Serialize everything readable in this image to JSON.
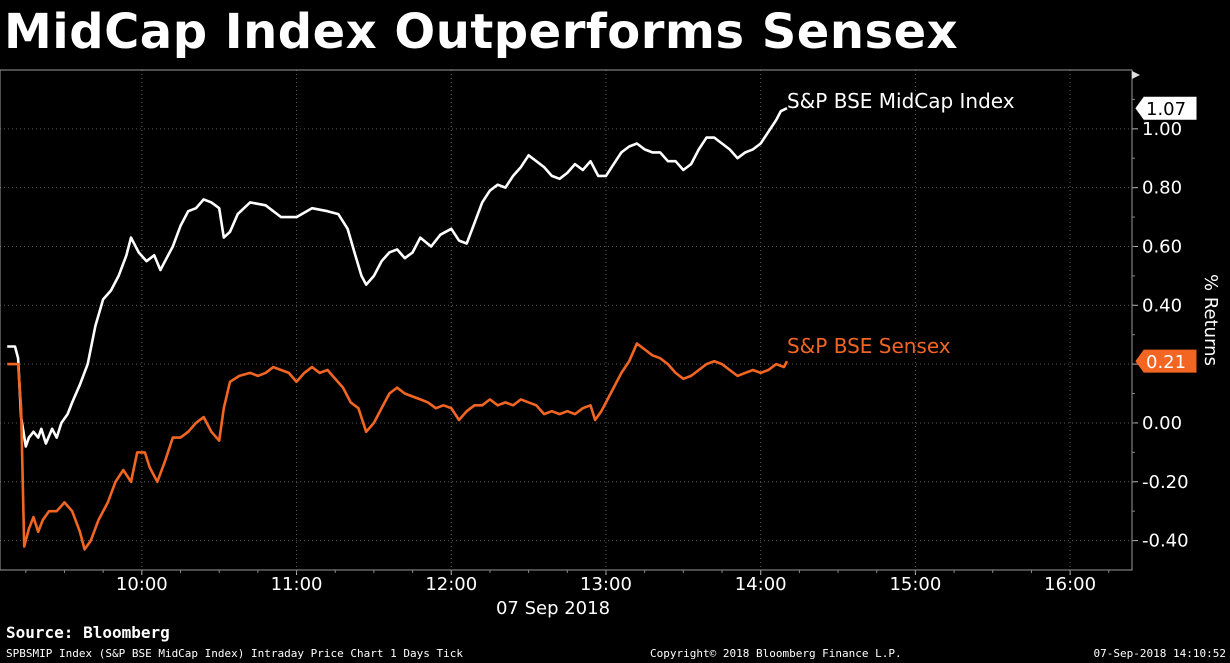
{
  "title": "MidCap Index Outperforms Sensex",
  "source": "Source: Bloomberg",
  "footer": {
    "left": "SPBSMIP Index (S&P BSE MidCap Index) Intraday Price Chart 1 Days  Tick",
    "mid": "Copyright© 2018 Bloomberg Finance L.P.",
    "right": "07-Sep-2018 14:10:52"
  },
  "chart_data": {
    "type": "line",
    "xlabel": "07 Sep 2018",
    "ylabel": "% Returns",
    "xlim": [
      9.0833,
      16.4
    ],
    "ylim": [
      -0.5,
      1.2
    ],
    "x_ticks": [
      10,
      11,
      12,
      13,
      14,
      15,
      16
    ],
    "x_tick_labels": [
      "10:00",
      "11:00",
      "12:00",
      "13:00",
      "14:00",
      "15:00",
      "16:00"
    ],
    "y_ticks": [
      -0.4,
      -0.2,
      0.0,
      0.2,
      0.4,
      0.6,
      0.8,
      1.0
    ],
    "y_tick_labels": [
      "-0.40",
      "-0.20",
      "0.00",
      "0.20",
      "0.40",
      "0.60",
      "0.80",
      "1.00"
    ],
    "grid": true,
    "series": [
      {
        "name": "S&P BSE MidCap Index",
        "color": "#ffffff",
        "last_value": "1.07",
        "points": [
          [
            9.13,
            0.26
          ],
          [
            9.18,
            0.26
          ],
          [
            9.2,
            0.22
          ],
          [
            9.22,
            0.02
          ],
          [
            9.25,
            -0.08
          ],
          [
            9.27,
            -0.05
          ],
          [
            9.3,
            -0.03
          ],
          [
            9.33,
            -0.05
          ],
          [
            9.35,
            -0.02
          ],
          [
            9.38,
            -0.07
          ],
          [
            9.42,
            -0.02
          ],
          [
            9.45,
            -0.05
          ],
          [
            9.48,
            0.0
          ],
          [
            9.52,
            0.03
          ],
          [
            9.55,
            0.07
          ],
          [
            9.6,
            0.13
          ],
          [
            9.65,
            0.2
          ],
          [
            9.7,
            0.33
          ],
          [
            9.75,
            0.42
          ],
          [
            9.8,
            0.45
          ],
          [
            9.85,
            0.5
          ],
          [
            9.9,
            0.57
          ],
          [
            9.93,
            0.63
          ],
          [
            9.98,
            0.58
          ],
          [
            10.03,
            0.55
          ],
          [
            10.08,
            0.57
          ],
          [
            10.12,
            0.52
          ],
          [
            10.15,
            0.55
          ],
          [
            10.2,
            0.6
          ],
          [
            10.25,
            0.67
          ],
          [
            10.3,
            0.72
          ],
          [
            10.35,
            0.73
          ],
          [
            10.4,
            0.76
          ],
          [
            10.45,
            0.75
          ],
          [
            10.5,
            0.73
          ],
          [
            10.53,
            0.63
          ],
          [
            10.57,
            0.65
          ],
          [
            10.62,
            0.71
          ],
          [
            10.7,
            0.75
          ],
          [
            10.8,
            0.74
          ],
          [
            10.9,
            0.7
          ],
          [
            11.0,
            0.7
          ],
          [
            11.1,
            0.73
          ],
          [
            11.2,
            0.72
          ],
          [
            11.27,
            0.71
          ],
          [
            11.33,
            0.66
          ],
          [
            11.38,
            0.57
          ],
          [
            11.42,
            0.5
          ],
          [
            11.45,
            0.47
          ],
          [
            11.5,
            0.5
          ],
          [
            11.55,
            0.55
          ],
          [
            11.6,
            0.58
          ],
          [
            11.65,
            0.59
          ],
          [
            11.7,
            0.56
          ],
          [
            11.75,
            0.58
          ],
          [
            11.8,
            0.63
          ],
          [
            11.87,
            0.6
          ],
          [
            11.93,
            0.64
          ],
          [
            12.0,
            0.66
          ],
          [
            12.05,
            0.62
          ],
          [
            12.1,
            0.61
          ],
          [
            12.15,
            0.68
          ],
          [
            12.2,
            0.75
          ],
          [
            12.25,
            0.79
          ],
          [
            12.3,
            0.81
          ],
          [
            12.35,
            0.8
          ],
          [
            12.4,
            0.84
          ],
          [
            12.45,
            0.87
          ],
          [
            12.5,
            0.91
          ],
          [
            12.55,
            0.89
          ],
          [
            12.6,
            0.87
          ],
          [
            12.65,
            0.84
          ],
          [
            12.7,
            0.83
          ],
          [
            12.75,
            0.85
          ],
          [
            12.8,
            0.88
          ],
          [
            12.85,
            0.86
          ],
          [
            12.9,
            0.89
          ],
          [
            12.95,
            0.84
          ],
          [
            13.0,
            0.84
          ],
          [
            13.05,
            0.88
          ],
          [
            13.1,
            0.92
          ],
          [
            13.15,
            0.94
          ],
          [
            13.2,
            0.95
          ],
          [
            13.25,
            0.93
          ],
          [
            13.3,
            0.92
          ],
          [
            13.35,
            0.92
          ],
          [
            13.4,
            0.89
          ],
          [
            13.45,
            0.89
          ],
          [
            13.5,
            0.86
          ],
          [
            13.55,
            0.88
          ],
          [
            13.6,
            0.93
          ],
          [
            13.65,
            0.97
          ],
          [
            13.7,
            0.97
          ],
          [
            13.75,
            0.95
          ],
          [
            13.8,
            0.93
          ],
          [
            13.85,
            0.9
          ],
          [
            13.9,
            0.92
          ],
          [
            13.95,
            0.93
          ],
          [
            14.0,
            0.95
          ],
          [
            14.05,
            0.99
          ],
          [
            14.1,
            1.03
          ],
          [
            14.13,
            1.06
          ],
          [
            14.17,
            1.07
          ]
        ]
      },
      {
        "name": "S&P BSE Sensex",
        "color": "#f26522",
        "last_value": "0.21",
        "points": [
          [
            9.13,
            0.2
          ],
          [
            9.2,
            0.2
          ],
          [
            9.22,
            0.05
          ],
          [
            9.24,
            -0.42
          ],
          [
            9.27,
            -0.36
          ],
          [
            9.3,
            -0.32
          ],
          [
            9.33,
            -0.37
          ],
          [
            9.36,
            -0.33
          ],
          [
            9.4,
            -0.3
          ],
          [
            9.45,
            -0.3
          ],
          [
            9.5,
            -0.27
          ],
          [
            9.55,
            -0.3
          ],
          [
            9.6,
            -0.37
          ],
          [
            9.63,
            -0.43
          ],
          [
            9.67,
            -0.4
          ],
          [
            9.72,
            -0.33
          ],
          [
            9.78,
            -0.27
          ],
          [
            9.83,
            -0.2
          ],
          [
            9.88,
            -0.16
          ],
          [
            9.93,
            -0.2
          ],
          [
            9.97,
            -0.1
          ],
          [
            10.02,
            -0.1
          ],
          [
            10.05,
            -0.15
          ],
          [
            10.1,
            -0.2
          ],
          [
            10.15,
            -0.13
          ],
          [
            10.2,
            -0.05
          ],
          [
            10.25,
            -0.05
          ],
          [
            10.3,
            -0.03
          ],
          [
            10.35,
            0.0
          ],
          [
            10.4,
            0.02
          ],
          [
            10.45,
            -0.03
          ],
          [
            10.5,
            -0.06
          ],
          [
            10.53,
            0.05
          ],
          [
            10.57,
            0.14
          ],
          [
            10.63,
            0.16
          ],
          [
            10.7,
            0.17
          ],
          [
            10.75,
            0.16
          ],
          [
            10.8,
            0.17
          ],
          [
            10.85,
            0.19
          ],
          [
            10.9,
            0.18
          ],
          [
            10.95,
            0.17
          ],
          [
            11.0,
            0.14
          ],
          [
            11.05,
            0.17
          ],
          [
            11.1,
            0.19
          ],
          [
            11.15,
            0.17
          ],
          [
            11.2,
            0.18
          ],
          [
            11.25,
            0.15
          ],
          [
            11.3,
            0.12
          ],
          [
            11.35,
            0.07
          ],
          [
            11.4,
            0.05
          ],
          [
            11.45,
            -0.03
          ],
          [
            11.5,
            0.0
          ],
          [
            11.55,
            0.05
          ],
          [
            11.6,
            0.1
          ],
          [
            11.65,
            0.12
          ],
          [
            11.7,
            0.1
          ],
          [
            11.75,
            0.09
          ],
          [
            11.8,
            0.08
          ],
          [
            11.85,
            0.07
          ],
          [
            11.9,
            0.05
          ],
          [
            11.95,
            0.06
          ],
          [
            12.0,
            0.05
          ],
          [
            12.05,
            0.01
          ],
          [
            12.1,
            0.04
          ],
          [
            12.15,
            0.06
          ],
          [
            12.2,
            0.06
          ],
          [
            12.25,
            0.08
          ],
          [
            12.3,
            0.06
          ],
          [
            12.35,
            0.07
          ],
          [
            12.4,
            0.06
          ],
          [
            12.45,
            0.08
          ],
          [
            12.5,
            0.07
          ],
          [
            12.55,
            0.06
          ],
          [
            12.6,
            0.03
          ],
          [
            12.65,
            0.04
          ],
          [
            12.7,
            0.03
          ],
          [
            12.75,
            0.04
          ],
          [
            12.8,
            0.03
          ],
          [
            12.85,
            0.05
          ],
          [
            12.9,
            0.06
          ],
          [
            12.93,
            0.01
          ],
          [
            12.97,
            0.04
          ],
          [
            13.0,
            0.07
          ],
          [
            13.05,
            0.12
          ],
          [
            13.1,
            0.17
          ],
          [
            13.15,
            0.21
          ],
          [
            13.2,
            0.27
          ],
          [
            13.25,
            0.25
          ],
          [
            13.3,
            0.23
          ],
          [
            13.35,
            0.22
          ],
          [
            13.4,
            0.2
          ],
          [
            13.45,
            0.17
          ],
          [
            13.5,
            0.15
          ],
          [
            13.55,
            0.16
          ],
          [
            13.6,
            0.18
          ],
          [
            13.65,
            0.2
          ],
          [
            13.7,
            0.21
          ],
          [
            13.75,
            0.2
          ],
          [
            13.8,
            0.18
          ],
          [
            13.85,
            0.16
          ],
          [
            13.9,
            0.17
          ],
          [
            13.95,
            0.18
          ],
          [
            14.0,
            0.17
          ],
          [
            14.05,
            0.18
          ],
          [
            14.1,
            0.2
          ],
          [
            14.15,
            0.19
          ],
          [
            14.17,
            0.21
          ]
        ]
      }
    ]
  }
}
